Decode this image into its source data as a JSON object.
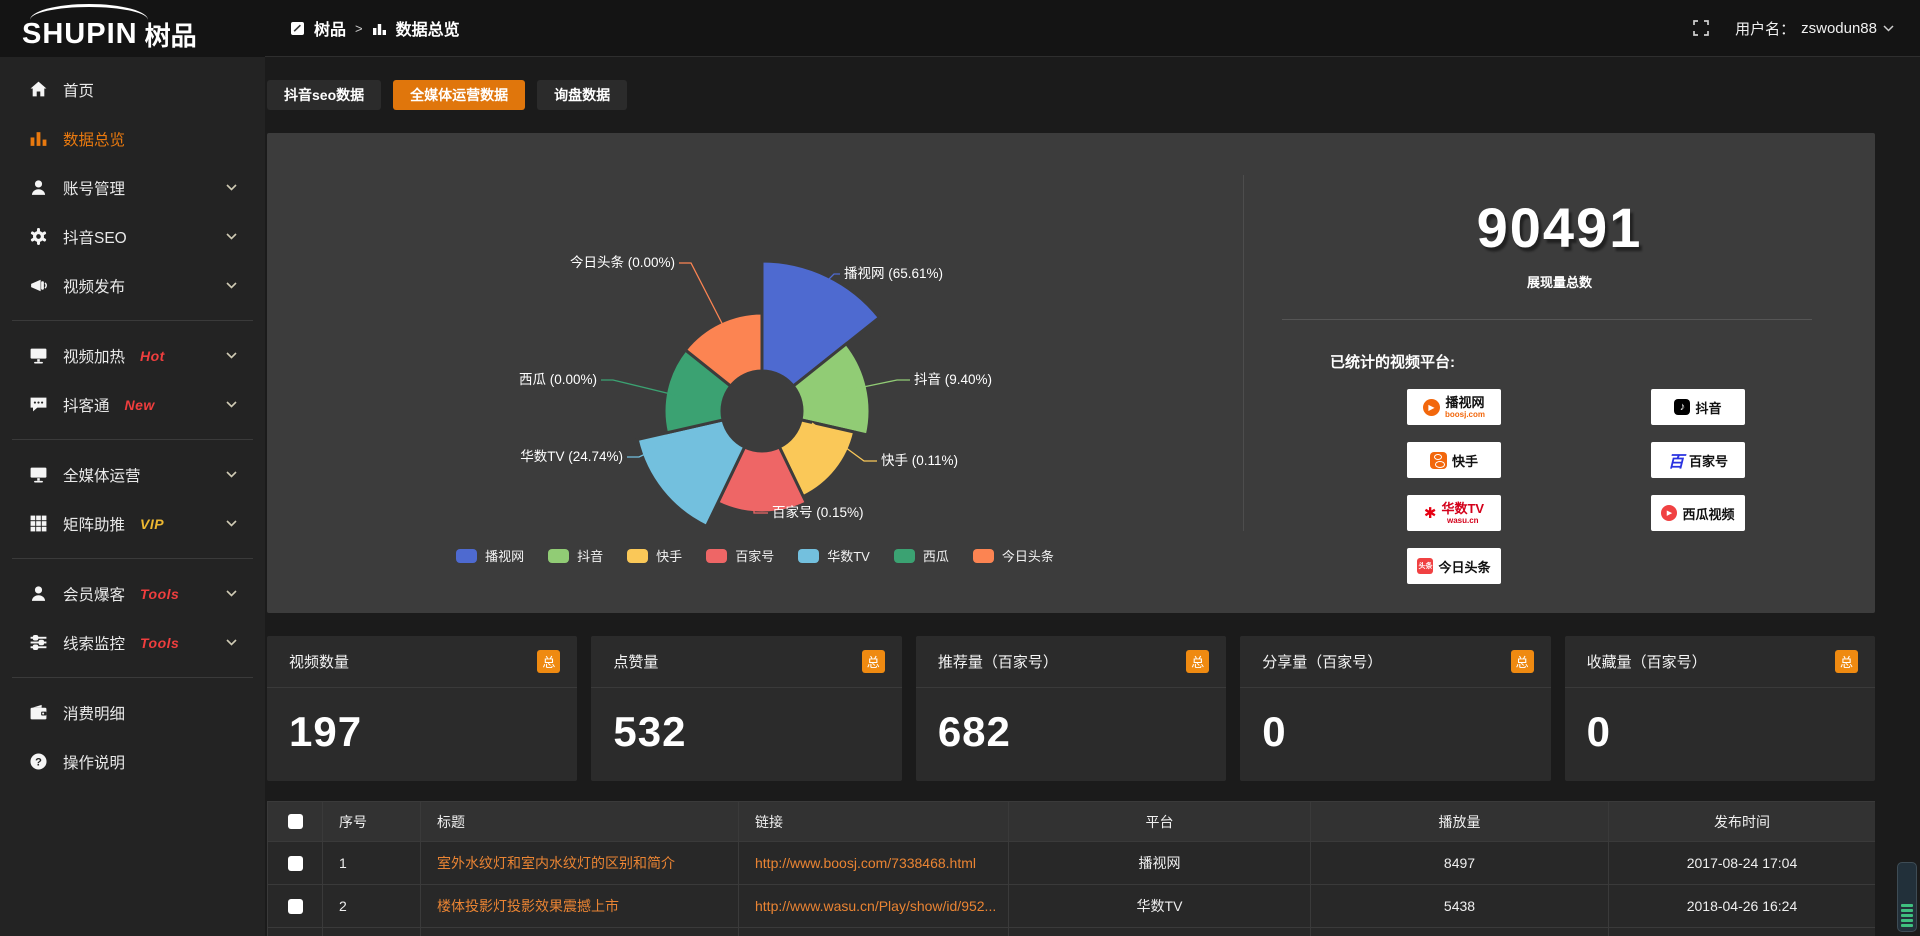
{
  "brand": {
    "logo_en": "SHUPIN",
    "logo_cn": "树品"
  },
  "topbar": {
    "breadcrumb_home": "树品",
    "breadcrumb_sep": ">",
    "breadcrumb_page": "数据总览",
    "username_label": "用户名：",
    "username_value": "zswodun88"
  },
  "sidebar": {
    "items": [
      {
        "label": "首页"
      },
      {
        "label": "数据总览"
      },
      {
        "label": "账号管理"
      },
      {
        "label": "抖音SEO"
      },
      {
        "label": "视频发布"
      },
      {
        "label": "视频加热",
        "badge": "Hot"
      },
      {
        "label": "抖客通",
        "badge": "New"
      },
      {
        "label": "全媒体运营"
      },
      {
        "label": "矩阵助推",
        "badge": "VIP"
      },
      {
        "label": "会员爆客",
        "badge": "Tools"
      },
      {
        "label": "线索监控",
        "badge": "Tools"
      },
      {
        "label": "消费明细"
      },
      {
        "label": "操作说明"
      }
    ],
    "badge_colors": {
      "hot": "#f03e3e",
      "new": "#f03e3e",
      "vip": "#edb831",
      "tools": "#f03e3e"
    }
  },
  "tabs": [
    {
      "label": "抖音seo数据"
    },
    {
      "label": "全媒体运营数据"
    },
    {
      "label": "询盘数据"
    }
  ],
  "chart_data": {
    "type": "pie",
    "variant": "nightingale-rose",
    "legend_position": "bottom",
    "unit": "percent",
    "series": [
      {
        "name": "播视网",
        "pct": "65.61",
        "color": "#4e6ad0",
        "display_radius": 150
      },
      {
        "name": "抖音",
        "pct": "9.40",
        "color": "#91cc75",
        "display_radius": 108
      },
      {
        "name": "快手",
        "pct": "0.11",
        "color": "#fac858",
        "display_radius": 95
      },
      {
        "name": "百家号",
        "pct": "0.15",
        "color": "#ee6666",
        "display_radius": 102
      },
      {
        "name": "华数TV",
        "pct": "24.74",
        "color": "#73c0de",
        "display_radius": 128
      },
      {
        "name": "西瓜",
        "pct": "0.00",
        "color": "#3ba272",
        "display_radius": 98
      },
      {
        "name": "今日头条",
        "pct": "0.00",
        "color": "#fc8452",
        "display_radius": 98
      }
    ]
  },
  "overview": {
    "total_value": "90491",
    "total_label": "展现量总数",
    "platforms_title": "已统计的视频平台:",
    "platforms": {
      "boosj": {
        "name": "播视网",
        "sub": "boosj.com"
      },
      "douyin": {
        "name": "抖音"
      },
      "kuaishou": {
        "name": "快手"
      },
      "baijiahao": {
        "name": "百家号",
        "icon_char": "百"
      },
      "wasu": {
        "name": "华数TV",
        "sub": "wasu.cn",
        "icon_char": "✱"
      },
      "xigua": {
        "name": "西瓜视频"
      },
      "toutiao": {
        "name": "今日头条",
        "icon_char": "头条"
      }
    }
  },
  "stat_cards": [
    {
      "title": "视频数量",
      "badge": "总",
      "value": "197"
    },
    {
      "title": "点赞量",
      "badge": "总",
      "value": "532"
    },
    {
      "title": "推荐量（百家号）",
      "badge": "总",
      "value": "682"
    },
    {
      "title": "分享量（百家号）",
      "badge": "总",
      "value": "0"
    },
    {
      "title": "收藏量（百家号）",
      "badge": "总",
      "value": "0"
    }
  ],
  "table": {
    "columns": {
      "no": "序号",
      "title": "标题",
      "link": "链接",
      "platform": "平台",
      "plays": "播放量",
      "time": "发布时间"
    },
    "rows": [
      {
        "no": "1",
        "title": "室外水纹灯和室内水纹灯的区别和简介",
        "link": "http://www.boosj.com/7338468.html",
        "platform": "播视网",
        "plays": "8497",
        "time": "2017-08-24 17:04"
      },
      {
        "no": "2",
        "title": "楼体投影灯投影效果震撼上市",
        "link": "http://www.wasu.cn/Play/show/id/952...",
        "platform": "华数TV",
        "plays": "5438",
        "time": "2018-04-26 16:24"
      }
    ]
  },
  "colors": {
    "accent_orange": "#e8790f",
    "active_tab": "#e0760c",
    "link_orange": "#ea8433",
    "panel_bg": "#3c3c3c"
  },
  "icons": {
    "home": "⌂",
    "bar-chart": "▮▮▮",
    "user": "person",
    "gear": "⚙",
    "megaphone": "📢",
    "monitor": "screen",
    "chat": "speech-bubble",
    "grid": "▦",
    "sliders": "equalizer",
    "wallet": "purse",
    "question": "?",
    "fullscreen": "corner-brackets",
    "chevron-down": "∨",
    "checkbox": "☐",
    "play": "▶",
    "music-note": "♪"
  }
}
